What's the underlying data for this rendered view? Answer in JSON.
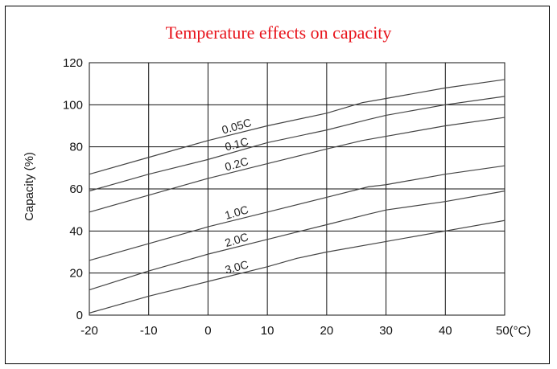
{
  "colors": {
    "title": "#e8141c",
    "grid": "#111111",
    "series": "#444444"
  },
  "chart_data": {
    "type": "line",
    "title": "Temperature effects on capacity",
    "xlabel": "",
    "ylabel": "Capacity (%)",
    "x_unit_label": "(°C)",
    "xlim": [
      -20,
      50
    ],
    "ylim": [
      0,
      120
    ],
    "x_ticks": [
      -20,
      -10,
      0,
      10,
      20,
      30,
      40,
      50
    ],
    "y_ticks": [
      0,
      20,
      40,
      60,
      80,
      100,
      120
    ],
    "x_tick_labels": [
      "-20",
      "-10",
      "0",
      "10",
      "20",
      "30",
      "40",
      "50(°C)"
    ],
    "y_tick_labels": [
      "0",
      "20",
      "40",
      "60",
      "80",
      "100",
      "120"
    ],
    "grid": true,
    "series": [
      {
        "name": "0.05C",
        "x": [
          -20,
          -10,
          0,
          10,
          20,
          26,
          30,
          40,
          50
        ],
        "y": [
          67,
          75,
          83,
          90,
          96,
          101,
          103,
          108,
          112
        ]
      },
      {
        "name": "0.1C",
        "x": [
          -20,
          -10,
          0,
          10,
          20,
          27,
          30,
          40,
          50
        ],
        "y": [
          59,
          67,
          74,
          82,
          88,
          93,
          95,
          100,
          104
        ]
      },
      {
        "name": "0.2C",
        "x": [
          -20,
          -10,
          0,
          10,
          20,
          26,
          30,
          40,
          50
        ],
        "y": [
          49,
          57,
          65,
          72,
          79,
          83,
          85,
          90,
          94
        ]
      },
      {
        "name": "1.0C",
        "x": [
          -20,
          -10,
          0,
          10,
          20,
          27,
          30,
          40,
          50
        ],
        "y": [
          26,
          34,
          42,
          49,
          56,
          61,
          62,
          67,
          71
        ]
      },
      {
        "name": "2.0C",
        "x": [
          -20,
          -10,
          0,
          10,
          20,
          27,
          30,
          40,
          50
        ],
        "y": [
          12,
          21,
          29,
          36,
          43,
          48,
          50,
          54,
          59
        ]
      },
      {
        "name": "3.0C",
        "x": [
          -20,
          -10,
          0,
          10,
          15,
          20,
          30,
          40,
          50
        ],
        "y": [
          1,
          9,
          16,
          23,
          27,
          30,
          35,
          40,
          45
        ]
      }
    ]
  }
}
